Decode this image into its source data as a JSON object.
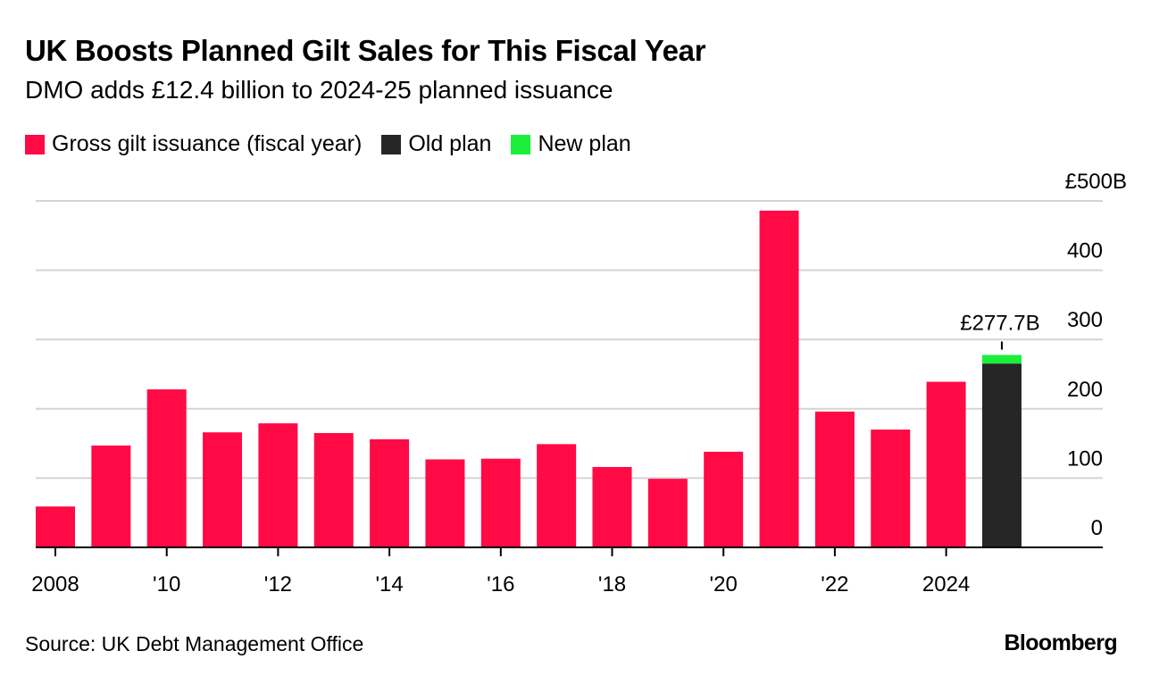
{
  "header": {
    "title": "UK Boosts Planned Gilt Sales for This Fiscal Year",
    "subtitle": "DMO adds £12.4 billion to 2024-25 planned issuance"
  },
  "legend": [
    {
      "label": "Gross gilt issuance (fiscal year)",
      "color": "#FF0A45"
    },
    {
      "label": "Old plan",
      "color": "#262626"
    },
    {
      "label": "New plan",
      "color": "#1BEF3A"
    }
  ],
  "chart_data": {
    "type": "bar",
    "title": "UK Boosts Planned Gilt Sales for This Fiscal Year",
    "subtitle": "DMO adds £12.4 billion to 2024-25 planned issuance",
    "unit": "£ billions",
    "ylim": [
      0,
      500
    ],
    "yticks": [
      0,
      100,
      200,
      300,
      400,
      500
    ],
    "ytick_labels": [
      "0",
      "100",
      "200",
      "300",
      "400",
      "£500B"
    ],
    "y_axis_side": "right",
    "grid": true,
    "xtick_labels": [
      {
        "year": 2008,
        "label": "2008"
      },
      {
        "year": 2010,
        "label": "'10"
      },
      {
        "year": 2012,
        "label": "'12"
      },
      {
        "year": 2014,
        "label": "'14"
      },
      {
        "year": 2016,
        "label": "'16"
      },
      {
        "year": 2018,
        "label": "'18"
      },
      {
        "year": 2020,
        "label": "'20"
      },
      {
        "year": 2022,
        "label": "'22"
      },
      {
        "year": 2024,
        "label": "2024"
      }
    ],
    "series": [
      {
        "name": "Gross gilt issuance (fiscal year)",
        "color": "#FF0A45",
        "x": [
          2008,
          2009,
          2010,
          2011,
          2012,
          2013,
          2014,
          2015,
          2016,
          2017,
          2018,
          2019,
          2020,
          2021,
          2022,
          2023,
          2024
        ],
        "values": [
          59,
          147,
          228,
          166,
          179,
          165,
          156,
          127,
          128,
          149,
          116,
          99,
          138,
          486,
          196,
          170,
          239
        ]
      },
      {
        "name": "Old plan",
        "color": "#262626",
        "x": [
          2025
        ],
        "values": [
          265.3
        ]
      },
      {
        "name": "New plan",
        "color": "#1BEF3A",
        "x": [
          2025
        ],
        "values": [
          12.4
        ],
        "stacked_on": "Old plan"
      }
    ],
    "annotation": {
      "x": 2025,
      "value": 277.7,
      "label": "£277.7B"
    }
  },
  "footer": {
    "source": "Source: UK Debt Management Office",
    "brand": "Bloomberg"
  }
}
